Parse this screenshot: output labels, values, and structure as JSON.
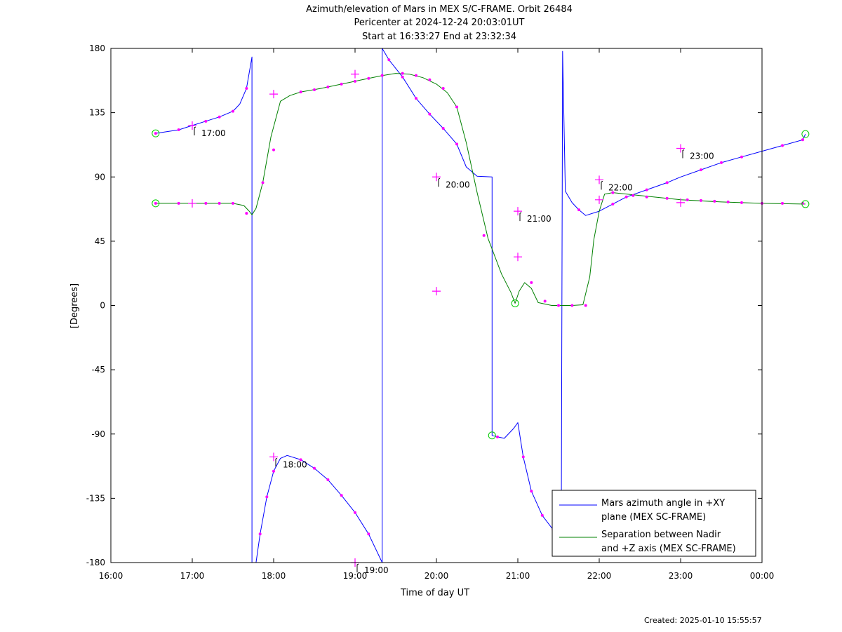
{
  "titles": [
    "Azimuth/elevation of Mars in MEX S/C-FRAME.  Orbit 26484",
    "Pericenter at 2024-12-24 20:03:01UT",
    "Start at 16:33:27 End at 23:32:34"
  ],
  "created": "Created: 2025-01-10 15:55:57",
  "colors": {
    "azimuth": "#0000ff",
    "separation": "#008000",
    "marker": "#ff00ff",
    "endpoint": "#00cc00",
    "axis": "#000000"
  },
  "chart_data": {
    "type": "line",
    "xlabel": "Time of day UT",
    "ylabel": "[Degrees]",
    "xlim": [
      "16:00",
      "00:00"
    ],
    "ylim": [
      -180,
      180
    ],
    "x_ticks": [
      "16:00",
      "17:00",
      "18:00",
      "19:00",
      "20:00",
      "21:00",
      "22:00",
      "23:00",
      "00:00"
    ],
    "y_ticks": [
      180,
      135,
      90,
      45,
      0,
      -45,
      -90,
      -135,
      -180
    ],
    "legend": {
      "position": "bottom-right"
    },
    "series": [
      {
        "name": "Mars azimuth angle in +XY plane (MEX SC-FRAME)",
        "legend_lines": [
          "Mars azimuth angle in +XY",
          "plane (MEX SC-FRAME)"
        ],
        "color_key": "azimuth",
        "points": [
          [
            "16:33",
            120.5
          ],
          [
            "16:50",
            123
          ],
          [
            "17:00",
            126
          ],
          [
            "17:10",
            129
          ],
          [
            "17:20",
            132
          ],
          [
            "17:30",
            136
          ],
          [
            "17:35",
            141
          ],
          [
            "17:40",
            152
          ],
          [
            "17:44",
            174
          ],
          [
            "17:44",
            -180
          ],
          [
            "17:47",
            -180
          ],
          [
            "17:50",
            -160
          ],
          [
            "17:55",
            -134
          ],
          [
            "18:00",
            -116
          ],
          [
            "18:05",
            -107
          ],
          [
            "18:10",
            -105
          ],
          [
            "18:20",
            -108
          ],
          [
            "18:30",
            -114
          ],
          [
            "18:40",
            -122
          ],
          [
            "18:50",
            -133
          ],
          [
            "19:00",
            -145
          ],
          [
            "19:10",
            -160
          ],
          [
            "19:20",
            -180
          ],
          [
            "19:20",
            180
          ],
          [
            "19:25",
            172
          ],
          [
            "19:35",
            160
          ],
          [
            "19:45",
            145
          ],
          [
            "19:55",
            134
          ],
          [
            "20:05",
            124
          ],
          [
            "20:15",
            113
          ],
          [
            "20:22",
            97
          ],
          [
            "20:30",
            90.5
          ],
          [
            "20:41",
            90
          ],
          [
            "20:41",
            -91
          ],
          [
            "20:45",
            -92
          ],
          [
            "20:50",
            -93
          ],
          [
            "20:57",
            -86
          ],
          [
            "21:00",
            -82
          ],
          [
            "21:04",
            -106
          ],
          [
            "21:10",
            -130
          ],
          [
            "21:18",
            -147
          ],
          [
            "21:26",
            -157
          ],
          [
            "21:32",
            -162
          ],
          [
            "21:33",
            178
          ],
          [
            "21:35",
            80
          ],
          [
            "21:40",
            72
          ],
          [
            "21:45",
            67
          ],
          [
            "21:50",
            63
          ],
          [
            "22:00",
            66
          ],
          [
            "22:10",
            71
          ],
          [
            "22:20",
            76
          ],
          [
            "22:35",
            81
          ],
          [
            "22:50",
            86
          ],
          [
            "23:00",
            90
          ],
          [
            "23:15",
            95
          ],
          [
            "23:30",
            100
          ],
          [
            "23:45",
            104
          ],
          [
            "24:00",
            108
          ],
          [
            "24:15",
            112
          ],
          [
            "24:30",
            116
          ],
          [
            "24:32",
            120
          ]
        ],
        "markers": [
          [
            "16:33",
            120.5
          ],
          [
            "16:50",
            123
          ],
          [
            "17:10",
            129
          ],
          [
            "17:20",
            132
          ],
          [
            "17:30",
            136
          ],
          [
            "17:40",
            152
          ],
          [
            "17:50",
            -160
          ],
          [
            "17:55",
            -134
          ],
          [
            "18:00",
            -116
          ],
          [
            "18:20",
            -108
          ],
          [
            "18:30",
            -114
          ],
          [
            "18:40",
            -122
          ],
          [
            "18:50",
            -133
          ],
          [
            "19:00",
            -145
          ],
          [
            "19:10",
            -160
          ],
          [
            "19:25",
            172
          ],
          [
            "19:35",
            160
          ],
          [
            "19:45",
            145
          ],
          [
            "19:55",
            134
          ],
          [
            "20:05",
            124
          ],
          [
            "20:15",
            113
          ],
          [
            "20:45",
            -92
          ],
          [
            "21:04",
            -106
          ],
          [
            "21:10",
            -130
          ],
          [
            "21:18",
            -147
          ],
          [
            "21:26",
            -157
          ],
          [
            "21:45",
            67
          ],
          [
            "22:10",
            71
          ],
          [
            "22:20",
            76
          ],
          [
            "22:35",
            81
          ],
          [
            "22:50",
            86
          ],
          [
            "23:15",
            95
          ],
          [
            "23:30",
            100
          ],
          [
            "23:45",
            104
          ],
          [
            "24:15",
            112
          ],
          [
            "24:30",
            116
          ]
        ],
        "hour_marks": [
          [
            "17:00",
            126
          ],
          [
            "18:00",
            -106
          ],
          [
            "19:00",
            -180
          ],
          [
            "20:00",
            90
          ],
          [
            "21:00",
            66
          ],
          [
            "22:00",
            88
          ],
          [
            "23:00",
            110
          ]
        ]
      },
      {
        "name": "Separation between Nadir and +Z axis (MEX SC-FRAME)",
        "legend_lines": [
          "Separation between Nadir",
          "and +Z axis (MEX SC-FRAME)"
        ],
        "color_key": "separation",
        "points": [
          [
            "16:33",
            71.5
          ],
          [
            "17:00",
            71.5
          ],
          [
            "17:30",
            71.5
          ],
          [
            "17:38",
            70
          ],
          [
            "17:42",
            66
          ],
          [
            "17:44",
            63.5
          ],
          [
            "17:47",
            68
          ],
          [
            "17:52",
            86
          ],
          [
            "17:58",
            118
          ],
          [
            "18:05",
            143
          ],
          [
            "18:12",
            147
          ],
          [
            "18:20",
            149.5
          ],
          [
            "18:35",
            152
          ],
          [
            "18:50",
            155
          ],
          [
            "19:05",
            158
          ],
          [
            "19:20",
            161
          ],
          [
            "19:30",
            162.5
          ],
          [
            "19:40",
            162
          ],
          [
            "19:50",
            159.5
          ],
          [
            "20:00",
            155
          ],
          [
            "20:08",
            149
          ],
          [
            "20:15",
            139
          ],
          [
            "20:22",
            114
          ],
          [
            "20:30",
            79
          ],
          [
            "20:38",
            47
          ],
          [
            "20:48",
            22
          ],
          [
            "20:55",
            9
          ],
          [
            "20:58",
            1.5
          ],
          [
            "21:01",
            10
          ],
          [
            "21:05",
            16
          ],
          [
            "21:10",
            12
          ],
          [
            "21:15",
            2
          ],
          [
            "21:25",
            0
          ],
          [
            "21:40",
            0
          ],
          [
            "21:48",
            0.5
          ],
          [
            "21:53",
            20
          ],
          [
            "21:56",
            46
          ],
          [
            "22:00",
            66
          ],
          [
            "22:04",
            78
          ],
          [
            "22:10",
            79
          ],
          [
            "22:30",
            77
          ],
          [
            "23:00",
            74
          ],
          [
            "23:30",
            72.5
          ],
          [
            "24:00",
            71.5
          ],
          [
            "24:32",
            71
          ]
        ],
        "markers": [
          [
            "16:33",
            71.5
          ],
          [
            "16:50",
            71.5
          ],
          [
            "17:10",
            71.5
          ],
          [
            "17:20",
            71.5
          ],
          [
            "17:30",
            71.5
          ],
          [
            "17:40",
            64.5
          ],
          [
            "17:52",
            86
          ],
          [
            "18:00",
            109
          ],
          [
            "18:20",
            149.5
          ],
          [
            "18:30",
            151
          ],
          [
            "18:40",
            153
          ],
          [
            "18:50",
            155
          ],
          [
            "19:00",
            157
          ],
          [
            "19:10",
            159
          ],
          [
            "19:20",
            161
          ],
          [
            "19:35",
            162.5
          ],
          [
            "19:45",
            161
          ],
          [
            "19:55",
            158
          ],
          [
            "20:05",
            152
          ],
          [
            "20:15",
            139
          ],
          [
            "20:35",
            49
          ],
          [
            "21:10",
            16
          ],
          [
            "21:20",
            3
          ],
          [
            "21:30",
            0
          ],
          [
            "21:40",
            0
          ],
          [
            "21:50",
            0
          ],
          [
            "22:10",
            79
          ],
          [
            "22:25",
            77
          ],
          [
            "22:35",
            76
          ],
          [
            "22:50",
            75
          ],
          [
            "23:05",
            74
          ],
          [
            "23:15",
            73.5
          ],
          [
            "23:25",
            73
          ],
          [
            "23:35",
            72.5
          ],
          [
            "23:45",
            72
          ],
          [
            "24:00",
            71.5
          ],
          [
            "24:15",
            71.5
          ],
          [
            "24:30",
            71.5
          ]
        ],
        "hour_marks": [
          [
            "17:00",
            71.5
          ],
          [
            "18:00",
            148
          ],
          [
            "19:00",
            162
          ],
          [
            "20:00",
            10
          ],
          [
            "21:00",
            34
          ],
          [
            "22:00",
            74
          ],
          [
            "23:00",
            72
          ]
        ]
      }
    ],
    "endpoint_circles": [
      [
        "16:33",
        120.5
      ],
      [
        "16:33",
        71.5
      ],
      [
        "20:58",
        1.5
      ],
      [
        "20:41",
        -91
      ],
      [
        "24:32",
        120
      ],
      [
        "24:32",
        71
      ]
    ],
    "hour_labels": [
      {
        "label": "17:00",
        "x": "17:00",
        "y": 126
      },
      {
        "label": "18:00",
        "x": "18:00",
        "y": -106
      },
      {
        "label": "19:00",
        "x": "19:00",
        "y": -180
      },
      {
        "label": "20:00",
        "x": "20:00",
        "y": 90
      },
      {
        "label": "21:00",
        "x": "21:00",
        "y": 66
      },
      {
        "label": "22:00",
        "x": "22:00",
        "y": 88
      },
      {
        "label": "23:00",
        "x": "23:00",
        "y": 110
      }
    ]
  }
}
